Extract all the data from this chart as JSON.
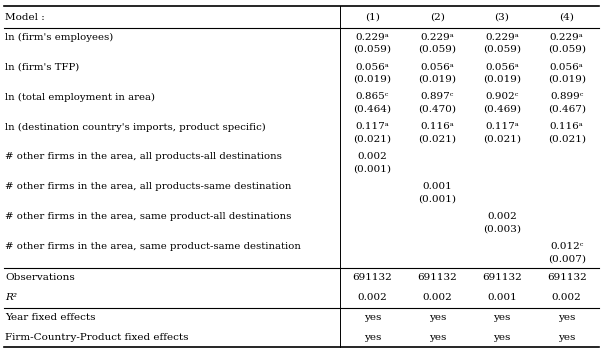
{
  "col_headers": [
    "Model :",
    "(1)",
    "(2)",
    "(3)",
    "(4)"
  ],
  "rows": [
    {
      "label": "ln (firm's employees)",
      "values": [
        "0.229ᵃ",
        "0.229ᵃ",
        "0.229ᵃ",
        "0.229ᵃ"
      ],
      "se": [
        "(0.059)",
        "(0.059)",
        "(0.059)",
        "(0.059)"
      ]
    },
    {
      "label": "ln (firm's TFP)",
      "values": [
        "0.056ᵃ",
        "0.056ᵃ",
        "0.056ᵃ",
        "0.056ᵃ"
      ],
      "se": [
        "(0.019)",
        "(0.019)",
        "(0.019)",
        "(0.019)"
      ]
    },
    {
      "label": "ln (total employment in area)",
      "values": [
        "0.865ᶜ",
        "0.897ᶜ",
        "0.902ᶜ",
        "0.899ᶜ"
      ],
      "se": [
        "(0.464)",
        "(0.470)",
        "(0.469)",
        "(0.467)"
      ]
    },
    {
      "label": "ln (destination country's imports, product specific)",
      "values": [
        "0.117ᵃ",
        "0.116ᵃ",
        "0.117ᵃ",
        "0.116ᵃ"
      ],
      "se": [
        "(0.021)",
        "(0.021)",
        "(0.021)",
        "(0.021)"
      ]
    },
    {
      "label": "# other firms in the area, all products-all destinations",
      "values": [
        "0.002",
        "",
        "",
        ""
      ],
      "se": [
        "(0.001)",
        "",
        "",
        ""
      ]
    },
    {
      "label": "# other firms in the area, all products-same destination",
      "values": [
        "",
        "0.001",
        "",
        ""
      ],
      "se": [
        "",
        "(0.001)",
        "",
        ""
      ]
    },
    {
      "label": "# other firms in the area, same product-all destinations",
      "values": [
        "",
        "",
        "0.002",
        ""
      ],
      "se": [
        "",
        "",
        "(0.003)",
        ""
      ]
    },
    {
      "label": "# other firms in the area, same product-same destination",
      "values": [
        "",
        "",
        "",
        "0.012ᶜ"
      ],
      "se": [
        "",
        "",
        "",
        "(0.007)"
      ]
    }
  ],
  "bottom_rows": [
    {
      "label": "Observations",
      "values": [
        "691132",
        "691132",
        "691132",
        "691132"
      ]
    },
    {
      "label": "R²",
      "values": [
        "0.002",
        "0.002",
        "0.001",
        "0.002"
      ]
    }
  ],
  "fixed_effects": [
    {
      "label": "Year fixed effects",
      "values": [
        "yes",
        "yes",
        "yes",
        "yes"
      ]
    },
    {
      "label": "Firm-Country-Product fixed effects",
      "values": [
        "yes",
        "yes",
        "yes",
        "yes"
      ]
    }
  ],
  "bg_color": "#ffffff",
  "line_color": "#000000",
  "font_size": 7.5
}
